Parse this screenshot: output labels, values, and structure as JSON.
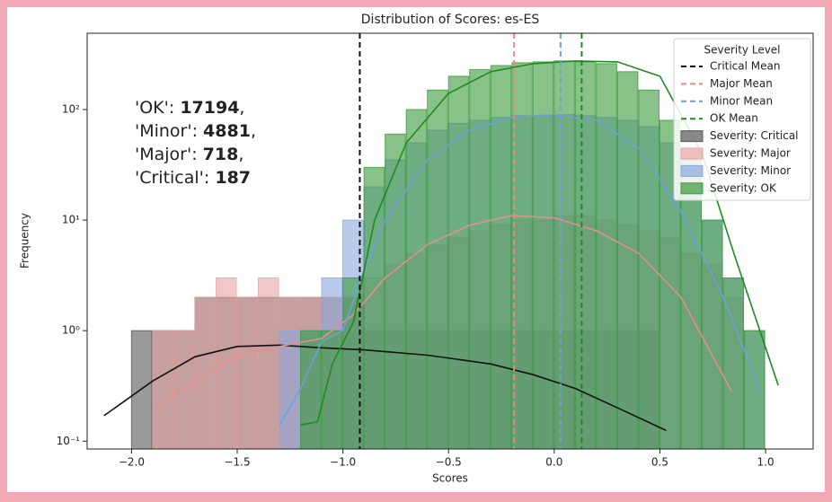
{
  "chart_data": {
    "type": "histogram",
    "title": "Distribution of Scores: es-ES",
    "xlabel": "Scores",
    "ylabel": "Frequency",
    "log_y": true,
    "xlim": [
      -2.21,
      1.225
    ],
    "ylim": [
      0.085,
      490
    ],
    "xticks": [
      {
        "value": -2.0,
        "label": "−2.0"
      },
      {
        "value": -1.5,
        "label": "−1.5"
      },
      {
        "value": -1.0,
        "label": "−1.0"
      },
      {
        "value": -0.5,
        "label": "−0.5"
      },
      {
        "value": 0.0,
        "label": "0.0"
      },
      {
        "value": 0.5,
        "label": "0.5"
      },
      {
        "value": 1.0,
        "label": "1.0"
      }
    ],
    "yticks": [
      {
        "value": 0.1,
        "label": "10⁻¹"
      },
      {
        "value": 1,
        "label": "10⁰"
      },
      {
        "value": 10,
        "label": "10¹"
      },
      {
        "value": 100,
        "label": "10²"
      }
    ],
    "legend_title": "Severity Level",
    "legend_position": "upper right",
    "bins": [
      -2.0,
      -1.9,
      -1.8,
      -1.7,
      -1.6,
      -1.5,
      -1.4,
      -1.3,
      -1.2,
      -1.1,
      -1.0,
      -0.9,
      -0.8,
      -0.7,
      -0.6,
      -0.5,
      -0.4,
      -0.3,
      -0.2,
      -0.1,
      0.0,
      0.1,
      0.2,
      0.3,
      0.4,
      0.5,
      0.6,
      0.7,
      0.8,
      0.9,
      1.0
    ],
    "means": [
      {
        "name": "Critical Mean",
        "color": "#111111",
        "x": -0.92
      },
      {
        "name": "Major Mean",
        "color": "#e8888a",
        "x": -0.19
      },
      {
        "name": "Minor Mean",
        "color": "#6f9fdc",
        "x": 0.03
      },
      {
        "name": "OK Mean",
        "color": "#1f8a1f",
        "x": 0.13
      }
    ],
    "series": [
      {
        "name": "Severity: Critical",
        "color": "#555555",
        "line_color": "#111111",
        "values": [
          1,
          1,
          1,
          2,
          2,
          2,
          2,
          2,
          2,
          2,
          2,
          1,
          1,
          1,
          1,
          1,
          1,
          1,
          1,
          1,
          1,
          1,
          1,
          1,
          1,
          0,
          0,
          0,
          0,
          0
        ],
        "kde_x": [
          -2.13,
          -1.9,
          -1.7,
          -1.5,
          -1.3,
          -1.1,
          -0.9,
          -0.6,
          -0.3,
          -0.1,
          0.1,
          0.3,
          0.53
        ],
        "kde_y": [
          0.17,
          0.35,
          0.58,
          0.72,
          0.74,
          0.7,
          0.67,
          0.6,
          0.5,
          0.4,
          0.3,
          0.2,
          0.125
        ]
      },
      {
        "name": "Severity: Major",
        "color": "#e8a3a3",
        "line_color": "#e58f8a",
        "values": [
          0,
          1,
          1,
          2,
          3,
          2,
          3,
          2,
          2,
          2,
          2,
          3,
          4,
          5,
          6,
          7,
          8,
          9,
          10,
          10,
          11,
          11,
          10,
          9,
          8,
          7,
          5,
          4,
          2,
          0
        ],
        "kde_x": [
          -1.88,
          -1.7,
          -1.5,
          -1.3,
          -1.1,
          -0.95,
          -0.8,
          -0.6,
          -0.4,
          -0.2,
          0.0,
          0.2,
          0.4,
          0.6,
          0.84
        ],
        "kde_y": [
          0.2,
          0.35,
          0.6,
          0.72,
          0.85,
          1.4,
          3,
          6,
          9,
          11,
          10.5,
          8,
          5,
          2,
          0.28
        ]
      },
      {
        "name": "Severity: Minor",
        "color": "#8aa8dc",
        "line_color": "#6f9fdc",
        "values": [
          0,
          0,
          0,
          0,
          0,
          0,
          0,
          1,
          1,
          3,
          10,
          20,
          35,
          50,
          65,
          75,
          80,
          85,
          88,
          88,
          90,
          88,
          85,
          80,
          70,
          50,
          30,
          10,
          3,
          1
        ],
        "kde_x": [
          -1.3,
          -1.2,
          -1.1,
          -1.0,
          -0.9,
          -0.8,
          -0.6,
          -0.4,
          -0.2,
          0.0,
          0.2,
          0.4,
          0.6,
          0.8,
          0.97
        ],
        "kde_y": [
          0.14,
          0.3,
          0.8,
          1.0,
          3.5,
          10,
          35,
          65,
          85,
          90,
          80,
          45,
          12,
          2,
          0.3
        ]
      },
      {
        "name": "Severity: OK",
        "color": "#3a9a3a",
        "line_color": "#1f8a1f",
        "values": [
          0,
          0,
          0,
          0,
          0,
          0,
          0,
          0,
          1,
          1,
          3,
          30,
          60,
          100,
          150,
          200,
          230,
          250,
          265,
          270,
          275,
          270,
          260,
          220,
          150,
          80,
          35,
          10,
          3,
          1
        ],
        "kde_x": [
          -1.2,
          -1.12,
          -1.05,
          -0.95,
          -0.85,
          -0.7,
          -0.5,
          -0.3,
          -0.1,
          0.1,
          0.3,
          0.5,
          0.7,
          0.85,
          1.06
        ],
        "kde_y": [
          0.14,
          0.15,
          0.5,
          1.2,
          10,
          50,
          140,
          220,
          260,
          275,
          270,
          200,
          40,
          5,
          0.32
        ]
      }
    ],
    "annotation": [
      {
        "key": "'OK': ",
        "count": 17194,
        "sep": ","
      },
      {
        "key": "'Minor': ",
        "count": 4881,
        "sep": ","
      },
      {
        "key": "'Major': ",
        "count": 718,
        "sep": ","
      },
      {
        "key": "'Critical': ",
        "count": 187
      }
    ]
  }
}
